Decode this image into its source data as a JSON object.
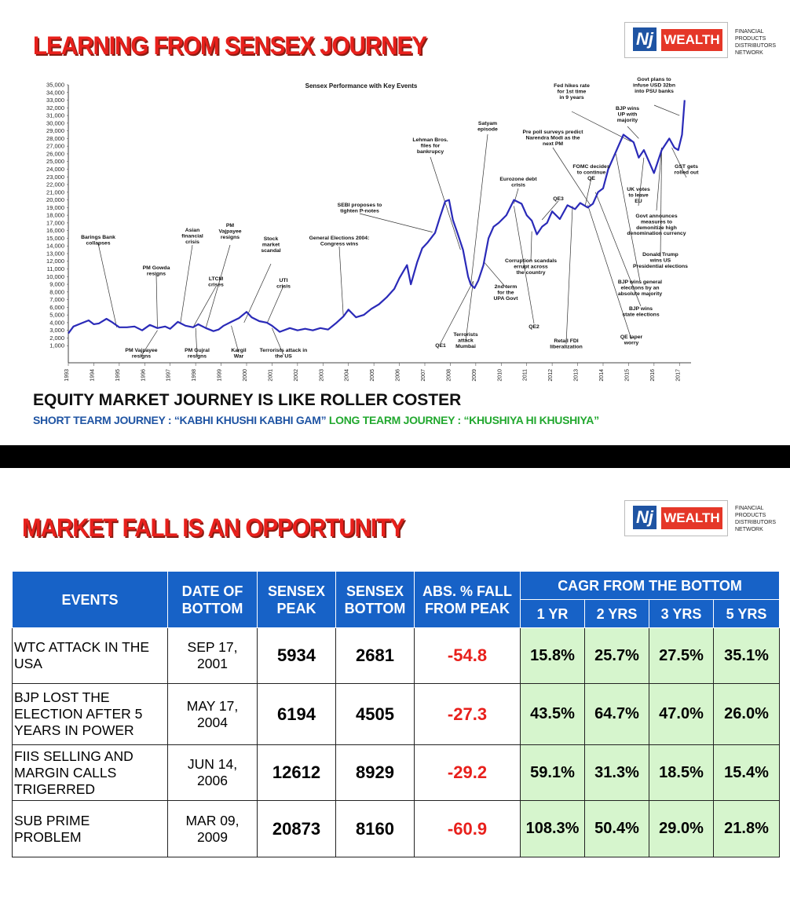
{
  "slide1": {
    "title": "LEARNING FROM SENSEX JOURNEY",
    "logo": {
      "mark": "Nj",
      "word": "WEALTH",
      "side_lines": [
        "FINANCIAL",
        "PRODUCTS",
        "DISTRIBUTORS",
        "NETWORK"
      ]
    },
    "caption_main": "EQUITY MARKET JOURNEY IS LIKE ROLLER COSTER",
    "caption_short": "SHORT TEARM JOURNEY : “KABHI KHUSHI KABHI GAM”",
    "caption_long": "LONG TEARM JOURNEY : “KHUSHIYA HI KHUSHIYA”"
  },
  "chart_data": {
    "type": "line",
    "title": "Sensex Performance with Key Events",
    "x_tick_labels": [
      "1993",
      "1994",
      "1995",
      "1996",
      "1997",
      "1998",
      "1999",
      "2000",
      "2001",
      "2002",
      "2003",
      "2004",
      "2005",
      "2006",
      "2007",
      "2008",
      "2009",
      "2010",
      "2011",
      "2012",
      "2013",
      "2014",
      "2015",
      "2016",
      "2017"
    ],
    "y_tick_labels": [
      "35,000",
      "34,000",
      "33,000",
      "32,000",
      "31,000",
      "30,000",
      "29,000",
      "28,000",
      "27,000",
      "26,000",
      "25,000",
      "24,000",
      "23,000",
      "22,000",
      "21,000",
      "20,000",
      "19,000",
      "18,000",
      "17,000",
      "16,000",
      "15,000",
      "14,000",
      "13,000",
      "12,000",
      "11,000",
      "10,000",
      "9,000",
      "8,000",
      "7,000",
      "6,000",
      "5,000",
      "4,000",
      "3,000",
      "2,000",
      "1,000"
    ],
    "xlim": [
      1993,
      2017.3
    ],
    "ylim": [
      0,
      35000
    ],
    "line_color": "#2a2ab8",
    "series": [
      {
        "x": [
          1993.0,
          1993.2,
          1993.5,
          1993.8,
          1994.0,
          1994.2,
          1994.5,
          1994.7,
          1995.0,
          1995.3,
          1995.6,
          1995.9,
          1996.2,
          1996.5,
          1996.8,
          1997.0,
          1997.3,
          1997.6,
          1997.9,
          1998.1,
          1998.4,
          1998.7,
          1998.9,
          1999.1,
          1999.4,
          1999.7,
          2000.0,
          2000.2,
          2000.5,
          2000.8,
          2001.0,
          2001.3,
          2001.7,
          2002.0,
          2002.3,
          2002.6,
          2002.9,
          2003.2,
          2003.5,
          2003.8,
          2004.0,
          2004.3,
          2004.6,
          2004.9,
          2005.2,
          2005.5,
          2005.8,
          2006.0,
          2006.3,
          2006.45,
          2006.7,
          2006.9,
          2007.1,
          2007.4,
          2007.6,
          2007.8,
          2007.95,
          2008.1,
          2008.3,
          2008.5,
          2008.7,
          2008.8,
          2008.95,
          2009.1,
          2009.3,
          2009.5,
          2009.7,
          2009.9,
          2010.2,
          2010.5,
          2010.8,
          2011.0,
          2011.2,
          2011.4,
          2011.6,
          2011.8,
          2012.0,
          2012.3,
          2012.6,
          2012.9,
          2013.1,
          2013.4,
          2013.6,
          2013.8,
          2014.0,
          2014.2,
          2014.4,
          2014.6,
          2014.8,
          2015.0,
          2015.2,
          2015.4,
          2015.6,
          2015.8,
          2016.0,
          2016.1,
          2016.3,
          2016.6,
          2016.8,
          2016.95,
          2017.1,
          2017.2
        ],
        "values": [
          2600,
          3500,
          3900,
          4300,
          3800,
          3900,
          4500,
          4100,
          3400,
          3400,
          3500,
          3000,
          3700,
          3300,
          3500,
          3200,
          4100,
          3600,
          3400,
          3800,
          3300,
          2900,
          3100,
          3600,
          4100,
          4600,
          5400,
          4700,
          4200,
          4000,
          3600,
          2800,
          3300,
          3000,
          3200,
          3000,
          3300,
          3100,
          3900,
          4800,
          5700,
          4700,
          5000,
          5800,
          6400,
          7300,
          8400,
          9800,
          11500,
          9000,
          11900,
          13700,
          14400,
          15700,
          17800,
          19800,
          20000,
          17400,
          15500,
          13500,
          10000,
          9000,
          8500,
          9500,
          11500,
          15000,
          16500,
          17000,
          18000,
          20000,
          19500,
          18000,
          17300,
          15500,
          16500,
          17000,
          18500,
          17500,
          19300,
          18800,
          19600,
          19000,
          19500,
          21000,
          21500,
          24000,
          25500,
          27000,
          28500,
          28000,
          27500,
          25500,
          26500,
          25000,
          23500,
          24500,
          26500,
          28000,
          26800,
          26500,
          28500,
          33000
        ]
      }
    ],
    "annotations": [
      "Barings Bank collapses",
      "PM Gowda resigns",
      "Asian financial crisis",
      "LTCM crises",
      "PM Vajpayee resigns",
      "Stock market scandal",
      "UTI crisis",
      "General Elections 2004: Congress wins",
      "SEBI proposes to tighten P-notes",
      "Lehman Bros. files for bankrupcy",
      "Satyam episode",
      "Eurozone debt crisis",
      "QE3",
      "FOMC decides to continue QE",
      "Pre poll surveys predict Narendra Modi as the next PM",
      "Fed hikes rate for 1st time in 9 years",
      "BJP wins UP with majority",
      "Govt plans to infuse USD 32bn into PSU banks",
      "GST gets rolled out",
      "UK votes to leave EU",
      "Govt announces measures to demonitize high denomination currency",
      "Donald Trump wins US Presidential elections",
      "BJP wins general elections by an absolute majority",
      "BJP wins state elections",
      "QE taper worry",
      "Retail FDI liberalization",
      "QE2",
      "Corruption scandals errupt across the country",
      "2nd term for the UPA Govt",
      "Terrorists attack Mumbai",
      "QE1",
      "Terrorists attack in the US",
      "Kargil War",
      "PM Gujral resigns",
      "PM Vajpayee resigns"
    ]
  },
  "slide2": {
    "title": "MARKET FALL IS AN OPPORTUNITY",
    "table": {
      "headers": {
        "events": "EVENTS",
        "date_l1": "DATE OF",
        "date_l2": "BOTTOM",
        "peak_l1": "SENSEX",
        "peak_l2": "PEAK",
        "bottom_l1": "SENSEX",
        "bottom_l2": "BOTTOM",
        "fall_l1": "ABS. % FALL",
        "fall_l2": "FROM PEAK",
        "cagr": "CAGR FROM THE BOTTOM",
        "y1": "1 YR",
        "y2": "2 YRS",
        "y3": "3 YRS",
        "y5": "5 YRS"
      },
      "rows": [
        {
          "event": [
            "WTC ATTACK IN THE",
            "USA"
          ],
          "date": [
            "SEP 17,",
            "2001"
          ],
          "peak": "5934",
          "bottom": "2681",
          "fall": "-54.8",
          "c1": "15.8%",
          "c2": "25.7%",
          "c3": "27.5%",
          "c5": "35.1%"
        },
        {
          "event": [
            "BJP LOST THE",
            "ELECTION AFTER 5",
            "YEARS IN POWER"
          ],
          "date": [
            "MAY 17,",
            "2004"
          ],
          "peak": "6194",
          "bottom": "4505",
          "fall": "-27.3",
          "c1": "43.5%",
          "c2": "64.7%",
          "c3": "47.0%",
          "c5": "26.0%"
        },
        {
          "event": [
            "FIIS SELLING AND",
            "MARGIN CALLS",
            "TRIGERRED"
          ],
          "date": [
            "JUN 14,",
            "2006"
          ],
          "peak": "12612",
          "bottom": "8929",
          "fall": "-29.2",
          "c1": "59.1%",
          "c2": "31.3%",
          "c3": "18.5%",
          "c5": "15.4%"
        },
        {
          "event": [
            "SUB PRIME",
            "PROBLEM"
          ],
          "date": [
            "MAR 09,",
            "2009"
          ],
          "peak": "20873",
          "bottom": "8160",
          "fall": "-60.9",
          "c1": "108.3%",
          "c2": "50.4%",
          "c3": "29.0%",
          "c5": "21.8%"
        }
      ]
    }
  }
}
